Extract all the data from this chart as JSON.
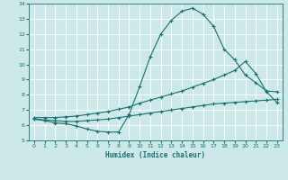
{
  "xlabel": "Humidex (Indice chaleur)",
  "ylabel": "",
  "bg_color": "#cce8e8",
  "grid_color": "#ffffff",
  "line_color": "#1a7070",
  "xlim": [
    -0.5,
    23.5
  ],
  "ylim": [
    5,
    14
  ],
  "xticks": [
    0,
    1,
    2,
    3,
    4,
    5,
    6,
    7,
    8,
    9,
    10,
    11,
    12,
    13,
    14,
    15,
    16,
    17,
    18,
    19,
    20,
    21,
    22,
    23
  ],
  "yticks": [
    5,
    6,
    7,
    8,
    9,
    10,
    11,
    12,
    13,
    14
  ],
  "line1_x": [
    0,
    1,
    2,
    3,
    4,
    5,
    6,
    7,
    8,
    9,
    10,
    11,
    12,
    13,
    14,
    15,
    16,
    17,
    18,
    19,
    20,
    21,
    22,
    23
  ],
  "line1_y": [
    6.4,
    6.3,
    6.15,
    6.1,
    5.95,
    5.75,
    5.6,
    5.55,
    5.55,
    6.7,
    8.55,
    10.5,
    12.0,
    12.9,
    13.5,
    13.7,
    13.3,
    12.5,
    11.0,
    10.3,
    9.3,
    8.8,
    8.25,
    8.2
  ],
  "line2_x": [
    0,
    1,
    2,
    3,
    4,
    5,
    6,
    7,
    8,
    9,
    10,
    11,
    12,
    13,
    14,
    15,
    16,
    17,
    18,
    19,
    20,
    21,
    22,
    23
  ],
  "line2_y": [
    6.5,
    6.5,
    6.5,
    6.55,
    6.6,
    6.7,
    6.8,
    6.9,
    7.05,
    7.2,
    7.45,
    7.65,
    7.85,
    8.05,
    8.25,
    8.5,
    8.75,
    9.0,
    9.3,
    9.6,
    10.2,
    9.4,
    8.2,
    7.5
  ],
  "line3_x": [
    0,
    1,
    2,
    3,
    4,
    5,
    6,
    7,
    8,
    9,
    10,
    11,
    12,
    13,
    14,
    15,
    16,
    17,
    18,
    19,
    20,
    21,
    22,
    23
  ],
  "line3_y": [
    6.4,
    6.35,
    6.3,
    6.25,
    6.25,
    6.3,
    6.35,
    6.4,
    6.5,
    6.6,
    6.7,
    6.8,
    6.9,
    7.0,
    7.1,
    7.2,
    7.3,
    7.4,
    7.45,
    7.5,
    7.55,
    7.6,
    7.65,
    7.7
  ]
}
